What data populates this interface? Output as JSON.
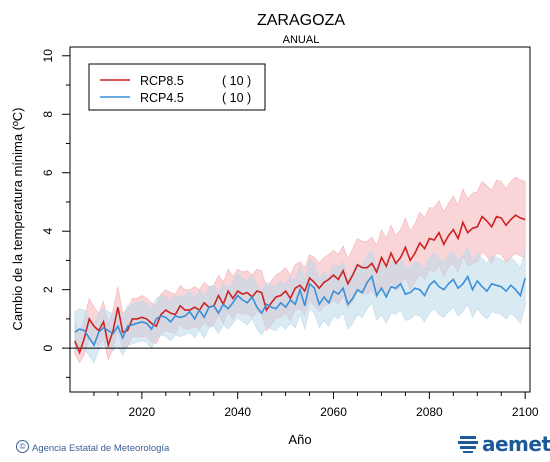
{
  "chart_data": {
    "type": "line",
    "title": "ZARAGOZA",
    "subtitle": "ANUAL",
    "xlabel": "Año",
    "ylabel": "Cambio de la temperatura mínima (ºC)",
    "xlim": [
      2005,
      2101
    ],
    "ylim": [
      -1.5,
      10.3
    ],
    "xticks": [
      2020,
      2040,
      2060,
      2080,
      2100
    ],
    "yticks": [
      0,
      2,
      4,
      6,
      8,
      10
    ],
    "reference_line": 0,
    "legend_position": "top-left",
    "series": [
      {
        "name": "RCP8.5",
        "count_label": "( 10 )",
        "color": "#cc2222",
        "band_color": "#f4b3b8",
        "x": [
          2006,
          2007,
          2008,
          2009,
          2010,
          2011,
          2012,
          2013,
          2014,
          2015,
          2016,
          2017,
          2018,
          2019,
          2020,
          2021,
          2022,
          2023,
          2024,
          2025,
          2026,
          2027,
          2028,
          2029,
          2030,
          2031,
          2032,
          2033,
          2034,
          2035,
          2036,
          2037,
          2038,
          2039,
          2040,
          2041,
          2042,
          2043,
          2044,
          2045,
          2046,
          2047,
          2048,
          2049,
          2050,
          2051,
          2052,
          2053,
          2054,
          2055,
          2056,
          2057,
          2058,
          2059,
          2060,
          2061,
          2062,
          2063,
          2064,
          2065,
          2066,
          2067,
          2068,
          2069,
          2070,
          2071,
          2072,
          2073,
          2074,
          2075,
          2076,
          2077,
          2078,
          2079,
          2080,
          2081,
          2082,
          2083,
          2084,
          2085,
          2086,
          2087,
          2088,
          2089,
          2090,
          2091,
          2092,
          2093,
          2094,
          2095,
          2096,
          2097,
          2098,
          2099,
          2100
        ],
        "values": [
          0.25,
          -0.15,
          0.35,
          1.0,
          0.75,
          0.6,
          0.9,
          0.1,
          0.6,
          1.4,
          0.55,
          0.6,
          1.0,
          1.0,
          1.05,
          1.0,
          0.85,
          0.75,
          1.15,
          1.3,
          1.2,
          1.15,
          1.45,
          1.3,
          1.3,
          1.4,
          1.3,
          1.55,
          1.4,
          1.45,
          1.8,
          1.5,
          1.95,
          1.7,
          1.95,
          1.85,
          1.9,
          1.75,
          1.95,
          1.9,
          1.3,
          1.55,
          1.75,
          1.8,
          1.95,
          1.7,
          2.05,
          2.15,
          1.95,
          2.4,
          2.25,
          2.05,
          2.25,
          2.35,
          2.5,
          2.35,
          2.65,
          2.2,
          2.5,
          2.85,
          2.75,
          2.75,
          2.9,
          2.6,
          3.1,
          2.8,
          3.25,
          2.9,
          3.1,
          3.45,
          3.0,
          3.25,
          3.6,
          3.4,
          3.75,
          3.7,
          3.95,
          3.55,
          3.85,
          4.05,
          3.75,
          4.3,
          3.95,
          4.1,
          4.15,
          4.5,
          4.35,
          4.15,
          4.5,
          4.45,
          4.2,
          4.4,
          4.55,
          4.45,
          4.4
        ],
        "lower": [
          -0.2,
          -0.5,
          -0.2,
          0.3,
          0.2,
          0.1,
          0.3,
          -0.4,
          0.0,
          0.6,
          0.0,
          0.05,
          0.4,
          0.4,
          0.4,
          0.4,
          0.2,
          0.15,
          0.5,
          0.6,
          0.55,
          0.5,
          0.8,
          0.65,
          0.65,
          0.75,
          0.65,
          0.9,
          0.75,
          0.8,
          1.15,
          0.85,
          1.25,
          1.0,
          1.25,
          1.15,
          1.2,
          1.05,
          1.25,
          1.15,
          0.6,
          0.8,
          1.0,
          1.05,
          1.2,
          0.95,
          1.3,
          1.35,
          1.15,
          1.6,
          1.45,
          1.25,
          1.45,
          1.5,
          1.65,
          1.5,
          1.8,
          1.35,
          1.6,
          1.95,
          1.85,
          1.85,
          2.0,
          1.7,
          2.15,
          1.85,
          2.3,
          1.95,
          2.15,
          2.45,
          2.0,
          2.25,
          2.55,
          2.35,
          2.7,
          2.6,
          2.85,
          2.45,
          2.75,
          2.9,
          2.6,
          3.15,
          2.8,
          2.9,
          2.95,
          3.3,
          3.15,
          2.9,
          3.25,
          3.2,
          2.95,
          3.1,
          3.25,
          3.15,
          3.1
        ],
        "upper": [
          0.9,
          0.5,
          1.0,
          1.7,
          1.4,
          1.2,
          1.6,
          0.8,
          1.3,
          2.1,
          1.2,
          1.3,
          1.7,
          1.7,
          1.8,
          1.7,
          1.55,
          1.45,
          1.85,
          2.0,
          1.9,
          1.85,
          2.15,
          2.0,
          2.0,
          2.1,
          2.0,
          2.25,
          2.1,
          2.15,
          2.5,
          2.25,
          2.7,
          2.45,
          2.7,
          2.6,
          2.65,
          2.5,
          2.7,
          2.65,
          2.05,
          2.3,
          2.5,
          2.6,
          2.75,
          2.5,
          2.85,
          2.95,
          2.75,
          3.2,
          3.1,
          2.9,
          3.1,
          3.2,
          3.35,
          3.2,
          3.5,
          3.05,
          3.4,
          3.75,
          3.65,
          3.65,
          3.8,
          3.5,
          4.05,
          3.75,
          4.2,
          3.85,
          4.05,
          4.45,
          4.0,
          4.25,
          4.65,
          4.45,
          4.8,
          4.8,
          5.05,
          4.65,
          4.95,
          5.2,
          4.9,
          5.45,
          5.1,
          5.3,
          5.35,
          5.7,
          5.55,
          5.4,
          5.75,
          5.7,
          5.45,
          5.7,
          5.85,
          5.75,
          5.7
        ]
      },
      {
        "name": "RCP4.5",
        "count_label": "( 10 )",
        "color": "#3a8fd8",
        "band_color": "#bcd9ea",
        "x": [
          2006,
          2007,
          2008,
          2009,
          2010,
          2011,
          2012,
          2013,
          2014,
          2015,
          2016,
          2017,
          2018,
          2019,
          2020,
          2021,
          2022,
          2023,
          2024,
          2025,
          2026,
          2027,
          2028,
          2029,
          2030,
          2031,
          2032,
          2033,
          2034,
          2035,
          2036,
          2037,
          2038,
          2039,
          2040,
          2041,
          2042,
          2043,
          2044,
          2045,
          2046,
          2047,
          2048,
          2049,
          2050,
          2051,
          2052,
          2053,
          2054,
          2055,
          2056,
          2057,
          2058,
          2059,
          2060,
          2061,
          2062,
          2063,
          2064,
          2065,
          2066,
          2067,
          2068,
          2069,
          2070,
          2071,
          2072,
          2073,
          2074,
          2075,
          2076,
          2077,
          2078,
          2079,
          2080,
          2081,
          2082,
          2083,
          2084,
          2085,
          2086,
          2087,
          2088,
          2089,
          2090,
          2091,
          2092,
          2093,
          2094,
          2095,
          2096,
          2097,
          2098,
          2099,
          2100
        ],
        "values": [
          0.55,
          0.65,
          0.6,
          0.35,
          0.1,
          0.55,
          0.7,
          0.6,
          0.5,
          0.75,
          0.35,
          0.75,
          0.8,
          0.85,
          0.9,
          0.85,
          0.65,
          1.0,
          1.1,
          1.05,
          0.9,
          1.1,
          1.05,
          1.1,
          1.25,
          1.0,
          1.3,
          1.05,
          1.4,
          1.45,
          1.2,
          1.5,
          1.35,
          1.55,
          1.8,
          1.65,
          1.55,
          1.75,
          1.4,
          1.2,
          1.5,
          1.4,
          1.35,
          1.55,
          1.4,
          1.65,
          1.5,
          2.0,
          1.45,
          2.2,
          2.05,
          1.5,
          1.75,
          1.55,
          1.95,
          1.85,
          2.05,
          1.5,
          1.7,
          2.0,
          1.9,
          2.25,
          2.45,
          1.8,
          2.05,
          1.75,
          2.1,
          2.05,
          2.2,
          1.85,
          1.9,
          2.05,
          2.0,
          1.8,
          2.15,
          2.3,
          2.1,
          2.0,
          2.2,
          2.35,
          2.05,
          2.2,
          2.45,
          2.0,
          2.3,
          2.1,
          1.95,
          2.2,
          2.15,
          2.1,
          1.95,
          2.15,
          2.0,
          1.8,
          2.4
        ],
        "lower": [
          -0.1,
          0.0,
          -0.05,
          -0.25,
          -0.5,
          -0.05,
          0.1,
          0.0,
          -0.1,
          0.1,
          -0.25,
          0.1,
          0.15,
          0.2,
          0.25,
          0.2,
          0.0,
          0.35,
          0.45,
          0.4,
          0.25,
          0.45,
          0.4,
          0.45,
          0.55,
          0.35,
          0.6,
          0.35,
          0.7,
          0.75,
          0.5,
          0.8,
          0.65,
          0.85,
          1.05,
          0.9,
          0.8,
          1.0,
          0.65,
          0.45,
          0.75,
          0.65,
          0.6,
          0.8,
          0.65,
          0.85,
          0.7,
          1.15,
          0.65,
          1.35,
          1.2,
          0.7,
          0.95,
          0.75,
          1.1,
          1.0,
          1.2,
          0.65,
          0.85,
          1.15,
          1.05,
          1.35,
          1.55,
          0.95,
          1.15,
          0.85,
          1.2,
          1.15,
          1.3,
          0.95,
          1.0,
          1.15,
          1.1,
          0.9,
          1.2,
          1.35,
          1.15,
          1.05,
          1.25,
          1.4,
          1.1,
          1.25,
          1.5,
          1.05,
          1.35,
          1.15,
          1.0,
          1.25,
          1.2,
          1.15,
          1.0,
          1.2,
          1.05,
          0.85,
          1.45
        ],
        "upper": [
          1.25,
          1.35,
          1.3,
          1.0,
          0.8,
          1.2,
          1.35,
          1.25,
          1.15,
          1.45,
          1.0,
          1.45,
          1.5,
          1.55,
          1.6,
          1.55,
          1.35,
          1.7,
          1.8,
          1.75,
          1.6,
          1.8,
          1.75,
          1.8,
          1.95,
          1.7,
          2.0,
          1.75,
          2.1,
          2.15,
          1.9,
          2.2,
          2.05,
          2.25,
          2.55,
          2.4,
          2.3,
          2.5,
          2.15,
          1.95,
          2.25,
          2.15,
          2.1,
          2.3,
          2.15,
          2.45,
          2.3,
          2.85,
          2.3,
          3.05,
          2.9,
          2.35,
          2.6,
          2.4,
          2.85,
          2.75,
          2.95,
          2.35,
          2.6,
          2.9,
          2.8,
          3.15,
          3.35,
          2.7,
          2.95,
          2.65,
          3.0,
          2.95,
          3.1,
          2.75,
          2.8,
          2.95,
          2.9,
          2.7,
          3.1,
          3.25,
          3.05,
          2.95,
          3.15,
          3.3,
          3.0,
          3.15,
          3.45,
          2.95,
          3.25,
          3.05,
          2.9,
          3.15,
          3.1,
          3.05,
          2.9,
          3.1,
          2.95,
          2.75,
          3.35
        ]
      }
    ]
  },
  "footer": {
    "copyright_symbol": "©",
    "agency": "Agencia Estatal de Meteorología",
    "logo_text": "aemet",
    "logo_color": "#1d5a98"
  }
}
